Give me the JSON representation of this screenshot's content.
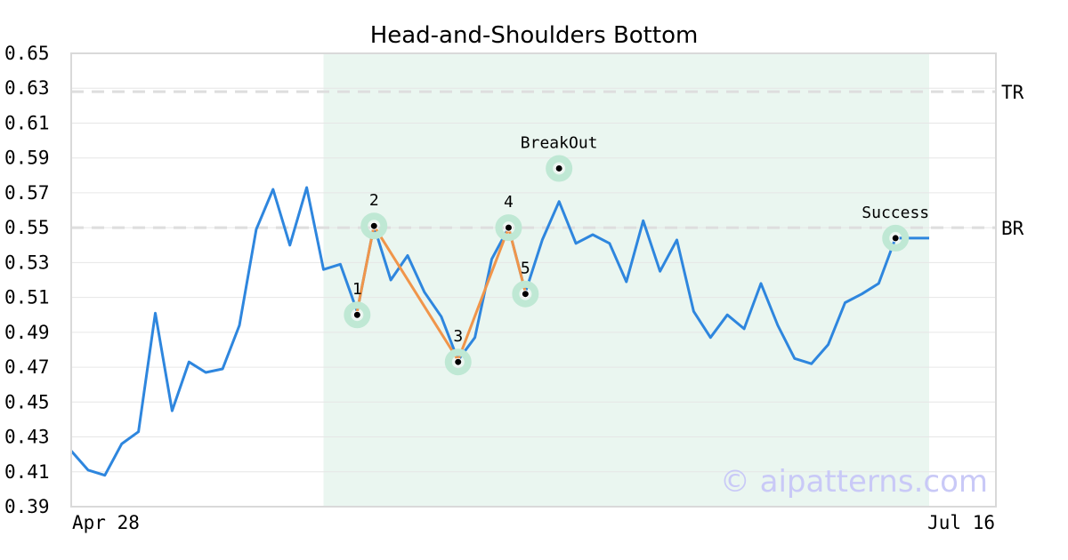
{
  "chart_data": {
    "type": "line",
    "title": "Head-and-Shoulders Bottom",
    "watermark": "© aipatterns.com",
    "x_start_label": "Apr 28",
    "x_end_label": "Jul 16",
    "ylim": [
      0.39,
      0.65
    ],
    "yticks": [
      "0.65",
      "0.63",
      "0.61",
      "0.59",
      "0.57",
      "0.55",
      "0.53",
      "0.51",
      "0.49",
      "0.47",
      "0.45",
      "0.43",
      "0.41",
      "0.39"
    ],
    "grid": true,
    "series": [
      {
        "color": "#2e86de",
        "values": [
          0.422,
          0.411,
          0.408,
          0.426,
          0.433,
          0.501,
          0.445,
          0.473,
          0.467,
          0.469,
          0.494,
          0.549,
          0.572,
          0.54,
          0.573,
          0.526,
          0.529,
          0.502,
          0.551,
          0.52,
          0.534,
          0.513,
          0.499,
          0.474,
          0.487,
          0.532,
          0.55,
          0.513,
          0.543,
          0.565,
          0.541,
          0.546,
          0.541,
          0.519,
          0.554,
          0.525,
          0.543,
          0.502,
          0.487,
          0.5,
          0.492,
          0.518,
          0.494,
          0.475,
          0.472,
          0.483,
          0.507,
          0.512,
          0.518,
          0.544,
          0.544,
          0.544
        ]
      }
    ],
    "pattern_shading": {
      "from_index": 15,
      "to_index": 51,
      "color": "#eaf6f0"
    },
    "pattern_line": {
      "color": "#f0954a",
      "indices": [
        17,
        18,
        23,
        26,
        27
      ]
    },
    "reference_lines": [
      {
        "label": "TR",
        "value": 0.628
      },
      {
        "label": "BR",
        "value": 0.55
      }
    ],
    "annotations": [
      {
        "label": "1",
        "index": 17,
        "value": 0.5
      },
      {
        "label": "2",
        "index": 18,
        "value": 0.551
      },
      {
        "label": "3",
        "index": 23,
        "value": 0.473
      },
      {
        "label": "4",
        "index": 26,
        "value": 0.55
      },
      {
        "label": "5",
        "index": 27,
        "value": 0.512
      },
      {
        "label": "BreakOut",
        "index": 29,
        "value": 0.584
      },
      {
        "label": "Success",
        "index": 49,
        "value": 0.544
      }
    ]
  }
}
